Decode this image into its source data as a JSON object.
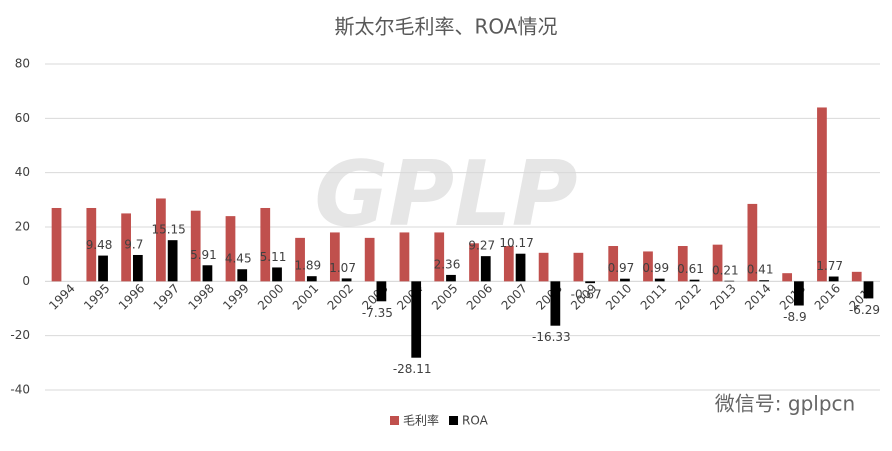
{
  "chart_data": {
    "type": "bar",
    "title": "斯太尔毛利率、ROA情况",
    "categories": [
      "1994",
      "1995",
      "1996",
      "1997",
      "1998",
      "1999",
      "2000",
      "2001",
      "2002",
      "2003",
      "2004",
      "2005",
      "2006",
      "2007",
      "2008",
      "2009",
      "2010",
      "2011",
      "2012",
      "2013",
      "2014",
      "2015",
      "2016",
      "2017"
    ],
    "series": [
      {
        "name": "毛利率",
        "color": "#c0504d",
        "values": [
          27,
          27,
          25,
          30.5,
          26,
          24,
          27,
          16,
          18,
          16,
          18,
          18,
          14,
          13,
          10.5,
          10.5,
          13,
          11,
          13,
          13.5,
          28.5,
          3,
          64,
          3.5
        ]
      },
      {
        "name": "ROA",
        "color": "#000000",
        "values": [
          null,
          9.48,
          9.7,
          15.15,
          5.91,
          4.45,
          5.11,
          1.89,
          1.07,
          -7.35,
          -28.11,
          2.36,
          9.27,
          10.17,
          -16.33,
          -0.67,
          0.97,
          0.99,
          0.61,
          0.21,
          0.41,
          -8.9,
          1.77,
          -6.29
        ],
        "data_labels": true
      }
    ],
    "ylim": [
      -40,
      80
    ],
    "yticks": [
      -40,
      -20,
      0,
      20,
      40,
      60,
      80
    ],
    "grid": true,
    "legend": "bottom",
    "watermark": "GPLP",
    "footer": "微信号: gplpcn"
  }
}
